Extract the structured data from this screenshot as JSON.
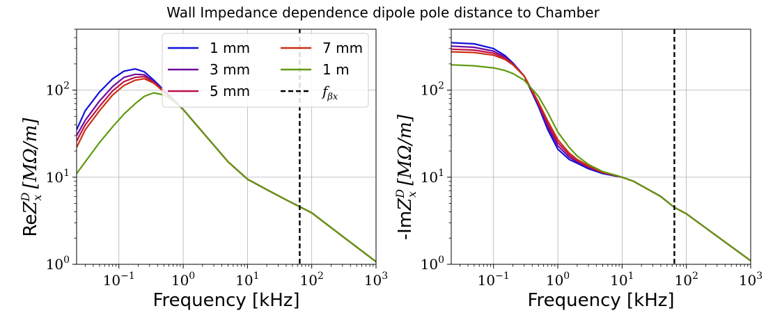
{
  "title": "Wall Impedance dependence dipole pole distance to Chamber",
  "chart_data": [
    {
      "type": "line",
      "xlabel": "Frequency [kHz]",
      "ylabel": "ReZ_x^D [MΩ/m]",
      "ylabel_parts": [
        "Re",
        "Z",
        "D",
        "x",
        " [MΩ/m]"
      ],
      "xscale": "log",
      "yscale": "log",
      "xlim": [
        0.022,
        1000
      ],
      "ylim": [
        1,
        500
      ],
      "grid": true,
      "legend_position": "top-center",
      "legend_columns": 2,
      "x_ticks": [
        {
          "base": "10",
          "exp": "−1"
        },
        {
          "base": "10",
          "exp": "0"
        },
        {
          "base": "10",
          "exp": "1"
        },
        {
          "base": "10",
          "exp": "2"
        },
        {
          "base": "10",
          "exp": "3"
        }
      ],
      "y_ticks": [
        {
          "base": "10",
          "exp": "0"
        },
        {
          "base": "10",
          "exp": "1"
        },
        {
          "base": "10",
          "exp": "2"
        }
      ],
      "vline": {
        "name": "f_βx",
        "label_main": "f",
        "label_sub": "βx",
        "x": 65,
        "color": "#000000",
        "style": "dashed"
      },
      "series": [
        {
          "name": "1 mm",
          "color": "#1010dd",
          "x": [
            0.022,
            0.03,
            0.05,
            0.08,
            0.12,
            0.18,
            0.25,
            0.35,
            0.5,
            0.7,
            1,
            2,
            5,
            10,
            20,
            40,
            100,
            300,
            1000
          ],
          "y": [
            35,
            58,
            95,
            135,
            165,
            175,
            162,
            130,
            100,
            78,
            60,
            33,
            15,
            9.5,
            7.2,
            5.5,
            3.9,
            2.1,
            1.07
          ]
        },
        {
          "name": "3 mm",
          "color": "#6e0aa0",
          "x": [
            0.022,
            0.03,
            0.05,
            0.08,
            0.12,
            0.18,
            0.25,
            0.35,
            0.5,
            0.7,
            1,
            2,
            5,
            10,
            20,
            40,
            100,
            300,
            1000
          ],
          "y": [
            30,
            45,
            75,
            110,
            140,
            152,
            150,
            125,
            98,
            76,
            60,
            33,
            15,
            9.5,
            7.2,
            5.5,
            3.9,
            2.1,
            1.07
          ]
        },
        {
          "name": "5 mm",
          "color": "#c0104a",
          "x": [
            0.022,
            0.03,
            0.05,
            0.08,
            0.12,
            0.18,
            0.25,
            0.35,
            0.5,
            0.7,
            1,
            2,
            5,
            10,
            20,
            40,
            100,
            300,
            1000
          ],
          "y": [
            26,
            40,
            65,
            98,
            125,
            140,
            143,
            122,
            97,
            76,
            60,
            33,
            15,
            9.5,
            7.2,
            5.5,
            3.9,
            2.1,
            1.07
          ]
        },
        {
          "name": "7 mm",
          "color": "#cc3010",
          "x": [
            0.022,
            0.03,
            0.05,
            0.08,
            0.12,
            0.18,
            0.25,
            0.35,
            0.5,
            0.7,
            1,
            2,
            5,
            10,
            20,
            40,
            100,
            300,
            1000
          ],
          "y": [
            22,
            35,
            58,
            88,
            113,
            130,
            135,
            120,
            96,
            76,
            60,
            33,
            15,
            9.5,
            7.2,
            5.5,
            3.9,
            2.1,
            1.07
          ]
        },
        {
          "name": "1 m",
          "color": "#5f9a10",
          "x": [
            0.022,
            0.03,
            0.05,
            0.08,
            0.12,
            0.18,
            0.25,
            0.35,
            0.5,
            0.7,
            1,
            2,
            5,
            10,
            20,
            40,
            100,
            300,
            1000
          ],
          "y": [
            11,
            15,
            25,
            38,
            53,
            70,
            85,
            93,
            88,
            75,
            60,
            33,
            15,
            9.5,
            7.2,
            5.5,
            3.9,
            2.1,
            1.07
          ]
        }
      ]
    },
    {
      "type": "line",
      "xlabel": "Frequency [kHz]",
      "ylabel": "-ImZ_x^D [MΩ/m]",
      "ylabel_parts": [
        "-Im",
        "Z",
        "D",
        "x",
        " [MΩ/m]"
      ],
      "xscale": "log",
      "yscale": "log",
      "xlim": [
        0.022,
        1000
      ],
      "ylim": [
        1,
        500
      ],
      "grid": true,
      "x_ticks": [
        {
          "base": "10",
          "exp": "−1"
        },
        {
          "base": "10",
          "exp": "0"
        },
        {
          "base": "10",
          "exp": "1"
        },
        {
          "base": "10",
          "exp": "2"
        },
        {
          "base": "10",
          "exp": "3"
        }
      ],
      "y_ticks": [
        {
          "base": "10",
          "exp": "0"
        },
        {
          "base": "10",
          "exp": "1"
        },
        {
          "base": "10",
          "exp": "2"
        }
      ],
      "vline": {
        "x": 65,
        "color": "#000000",
        "style": "dashed"
      },
      "series": [
        {
          "name": "1 mm",
          "color": "#1010dd",
          "x": [
            0.022,
            0.05,
            0.1,
            0.15,
            0.2,
            0.3,
            0.5,
            0.7,
            1,
            1.5,
            2,
            3,
            5,
            8,
            10,
            15,
            20,
            40,
            65,
            100,
            300,
            1000
          ],
          "y": [
            350,
            340,
            300,
            250,
            205,
            145,
            65,
            35,
            21,
            16,
            14.5,
            12.5,
            11,
            10.3,
            10,
            9,
            8,
            6,
            4.5,
            3.8,
            2.1,
            1.1
          ]
        },
        {
          "name": "3 mm",
          "color": "#6e0aa0",
          "x": [
            0.022,
            0.05,
            0.1,
            0.15,
            0.2,
            0.3,
            0.5,
            0.7,
            1,
            1.5,
            2,
            3,
            5,
            8,
            10,
            15,
            20,
            40,
            65,
            100,
            300,
            1000
          ],
          "y": [
            320,
            310,
            280,
            240,
            200,
            145,
            68,
            38,
            23,
            17,
            15,
            13,
            11.2,
            10.4,
            10,
            9,
            8,
            6,
            4.5,
            3.8,
            2.1,
            1.1
          ]
        },
        {
          "name": "5 mm",
          "color": "#c0104a",
          "x": [
            0.022,
            0.05,
            0.1,
            0.15,
            0.2,
            0.3,
            0.5,
            0.7,
            1,
            1.5,
            2,
            3,
            5,
            8,
            10,
            15,
            20,
            40,
            65,
            100,
            300,
            1000
          ],
          "y": [
            295,
            288,
            265,
            232,
            198,
            145,
            70,
            41,
            25,
            18,
            15.5,
            13.2,
            11.3,
            10.4,
            10,
            9,
            8,
            6,
            4.5,
            3.8,
            2.1,
            1.1
          ]
        },
        {
          "name": "7 mm",
          "color": "#cc3010",
          "x": [
            0.022,
            0.05,
            0.1,
            0.15,
            0.2,
            0.3,
            0.5,
            0.7,
            1,
            1.5,
            2,
            3,
            5,
            8,
            10,
            15,
            20,
            40,
            65,
            100,
            300,
            1000
          ],
          "y": [
            275,
            270,
            252,
            225,
            195,
            145,
            73,
            44,
            27,
            19,
            16,
            13.5,
            11.4,
            10.5,
            10,
            9,
            8,
            6,
            4.5,
            3.8,
            2.1,
            1.1
          ]
        },
        {
          "name": "1 m",
          "color": "#5f9a10",
          "x": [
            0.022,
            0.05,
            0.1,
            0.15,
            0.2,
            0.3,
            0.5,
            0.7,
            1,
            1.5,
            2,
            3,
            5,
            8,
            10,
            15,
            20,
            40,
            65,
            100,
            300,
            1000
          ],
          "y": [
            195,
            190,
            180,
            168,
            155,
            130,
            85,
            55,
            33,
            22,
            17.5,
            14,
            11.6,
            10.5,
            10,
            9,
            8,
            6,
            4.5,
            3.8,
            2.1,
            1.1
          ]
        }
      ]
    }
  ]
}
